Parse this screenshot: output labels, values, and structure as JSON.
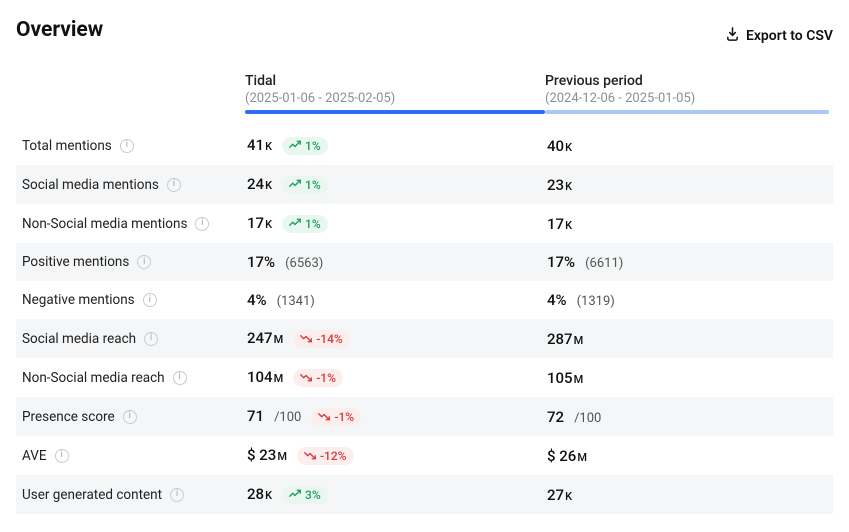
{
  "header": {
    "title": "Overview",
    "export_label": "Export to CSV"
  },
  "columns": {
    "current": {
      "name": "Tidal",
      "range": "(2025-01-06 - 2025-02-05)",
      "bar_color": "#2b6ef2"
    },
    "previous": {
      "name": "Previous period",
      "range": "(2024-12-06 - 2025-01-05)",
      "bar_color": "#a9c8f5"
    }
  },
  "rows": [
    {
      "label": "Total mentions",
      "cur": "41",
      "cur_unit": "K",
      "delta": "1%",
      "dir": "up",
      "prev": "40",
      "prev_unit": "K"
    },
    {
      "label": "Social media mentions",
      "cur": "24",
      "cur_unit": "K",
      "delta": "1%",
      "dir": "up",
      "prev": "23",
      "prev_unit": "K"
    },
    {
      "label": "Non-Social media mentions",
      "cur": "17",
      "cur_unit": "K",
      "delta": "1%",
      "dir": "up",
      "prev": "17",
      "prev_unit": "K"
    },
    {
      "label": "Positive mentions",
      "cur": "17%",
      "cur_sub": "(6563)",
      "prev": "17%",
      "prev_sub": "(6611)"
    },
    {
      "label": "Negative mentions",
      "cur": "4%",
      "cur_sub": "(1341)",
      "prev": "4%",
      "prev_sub": "(1319)"
    },
    {
      "label": "Social media reach",
      "cur": "247",
      "cur_unit": "M",
      "delta": "-14%",
      "dir": "down",
      "prev": "287",
      "prev_unit": "M"
    },
    {
      "label": "Non-Social media reach",
      "cur": "104",
      "cur_unit": "M",
      "delta": "-1%",
      "dir": "down",
      "prev": "105",
      "prev_unit": "M"
    },
    {
      "label": "Presence score",
      "cur": "71",
      "cur_sub": "/100",
      "delta": "-1%",
      "dir": "down",
      "prev": "72",
      "prev_sub": "/100"
    },
    {
      "label": "AVE",
      "cur": "$ 23",
      "cur_unit": "M",
      "delta": "-12%",
      "dir": "down",
      "prev": "$ 26",
      "prev_unit": "M"
    },
    {
      "label": "User generated content",
      "cur": "28",
      "cur_unit": "K",
      "delta": "3%",
      "dir": "up",
      "prev": "27",
      "prev_unit": "K"
    }
  ],
  "colors": {
    "up": "#1a9e5c",
    "down": "#d93939",
    "row_alt_bg": "#f5f6f7"
  }
}
